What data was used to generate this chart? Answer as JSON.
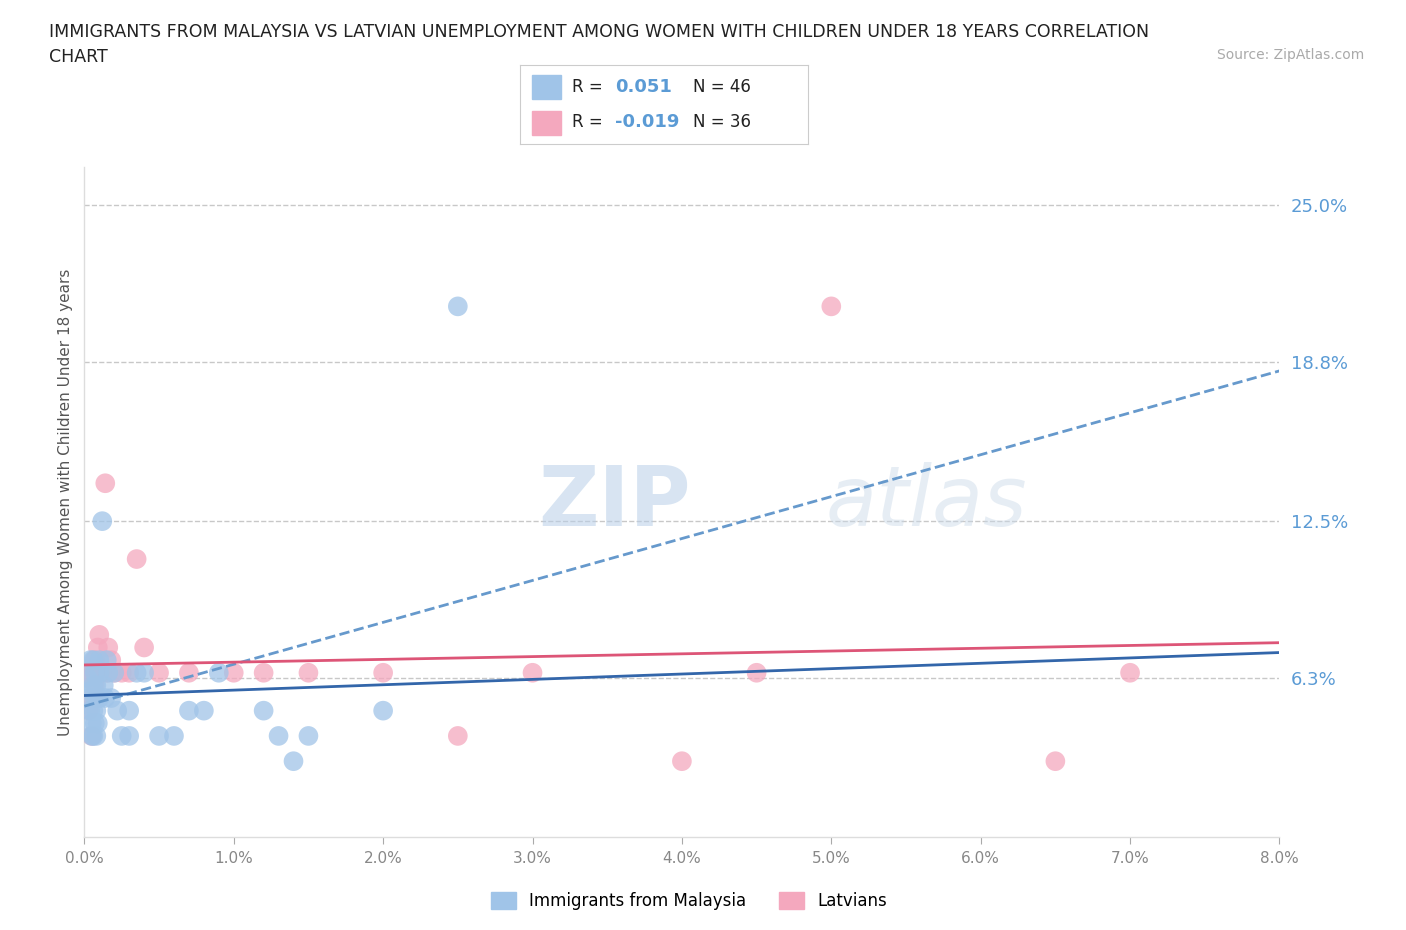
{
  "title_line1": "IMMIGRANTS FROM MALAYSIA VS LATVIAN UNEMPLOYMENT AMONG WOMEN WITH CHILDREN UNDER 18 YEARS CORRELATION",
  "title_line2": "CHART",
  "source": "Source: ZipAtlas.com",
  "ylabel": "Unemployment Among Women with Children Under 18 years",
  "xlim": [
    0.0,
    0.08
  ],
  "ylim": [
    0.0,
    0.265
  ],
  "yticks": [
    0.063,
    0.125,
    0.188,
    0.25
  ],
  "ytick_labels": [
    "6.3%",
    "12.5%",
    "18.8%",
    "25.0%"
  ],
  "xticks": [
    0.0,
    0.01,
    0.02,
    0.03,
    0.04,
    0.05,
    0.06,
    0.07,
    0.08
  ],
  "xtick_labels": [
    "0.0%",
    "1.0%",
    "2.0%",
    "3.0%",
    "4.0%",
    "5.0%",
    "6.0%",
    "7.0%",
    "8.0%"
  ],
  "grid_color": "#c8c8c8",
  "background_color": "#ffffff",
  "blue_scatter_color": "#a0c4e8",
  "pink_scatter_color": "#f4a8be",
  "trend_blue_dashed_color": "#6699cc",
  "trend_blue_solid_color": "#3366aa",
  "trend_pink_color": "#dd5577",
  "axis_color": "#5b9bd5",
  "tick_color": "#888888",
  "title_color": "#222222",
  "watermark_zip": "ZIP",
  "watermark_atlas": "atlas",
  "legend_label1": "Immigrants from Malaysia",
  "legend_label2": "Latvians",
  "blue_scatter_x": [
    0.0002,
    0.0003,
    0.0004,
    0.0004,
    0.0005,
    0.0005,
    0.0005,
    0.0006,
    0.0006,
    0.0006,
    0.0006,
    0.0007,
    0.0007,
    0.0007,
    0.0008,
    0.0008,
    0.0008,
    0.0009,
    0.0009,
    0.001,
    0.001,
    0.001,
    0.0012,
    0.0013,
    0.0014,
    0.0015,
    0.0016,
    0.0018,
    0.002,
    0.0022,
    0.0025,
    0.003,
    0.003,
    0.0035,
    0.004,
    0.005,
    0.006,
    0.007,
    0.008,
    0.009,
    0.012,
    0.013,
    0.014,
    0.015,
    0.02,
    0.025
  ],
  "blue_scatter_y": [
    0.063,
    0.055,
    0.05,
    0.07,
    0.058,
    0.045,
    0.04,
    0.07,
    0.06,
    0.05,
    0.04,
    0.065,
    0.055,
    0.045,
    0.06,
    0.05,
    0.04,
    0.055,
    0.045,
    0.07,
    0.065,
    0.055,
    0.125,
    0.06,
    0.055,
    0.07,
    0.065,
    0.055,
    0.065,
    0.05,
    0.04,
    0.05,
    0.04,
    0.065,
    0.065,
    0.04,
    0.04,
    0.05,
    0.05,
    0.065,
    0.05,
    0.04,
    0.03,
    0.04,
    0.05,
    0.21
  ],
  "pink_scatter_x": [
    0.0002,
    0.0003,
    0.0004,
    0.0005,
    0.0005,
    0.0006,
    0.0007,
    0.0007,
    0.0008,
    0.0008,
    0.0009,
    0.001,
    0.001,
    0.0012,
    0.0014,
    0.0015,
    0.0016,
    0.0018,
    0.002,
    0.0025,
    0.003,
    0.0035,
    0.004,
    0.005,
    0.007,
    0.01,
    0.012,
    0.015,
    0.02,
    0.025,
    0.03,
    0.04,
    0.045,
    0.05,
    0.065,
    0.07
  ],
  "pink_scatter_y": [
    0.063,
    0.05,
    0.065,
    0.04,
    0.055,
    0.065,
    0.07,
    0.06,
    0.065,
    0.055,
    0.075,
    0.065,
    0.08,
    0.065,
    0.14,
    0.065,
    0.075,
    0.07,
    0.065,
    0.065,
    0.065,
    0.11,
    0.075,
    0.065,
    0.065,
    0.065,
    0.065,
    0.065,
    0.065,
    0.04,
    0.065,
    0.03,
    0.065,
    0.21,
    0.03,
    0.065
  ],
  "trend_blue_start_y": 0.056,
  "trend_blue_end_y": 0.073,
  "trend_pink_start_y": 0.065,
  "trend_pink_end_y": 0.063
}
